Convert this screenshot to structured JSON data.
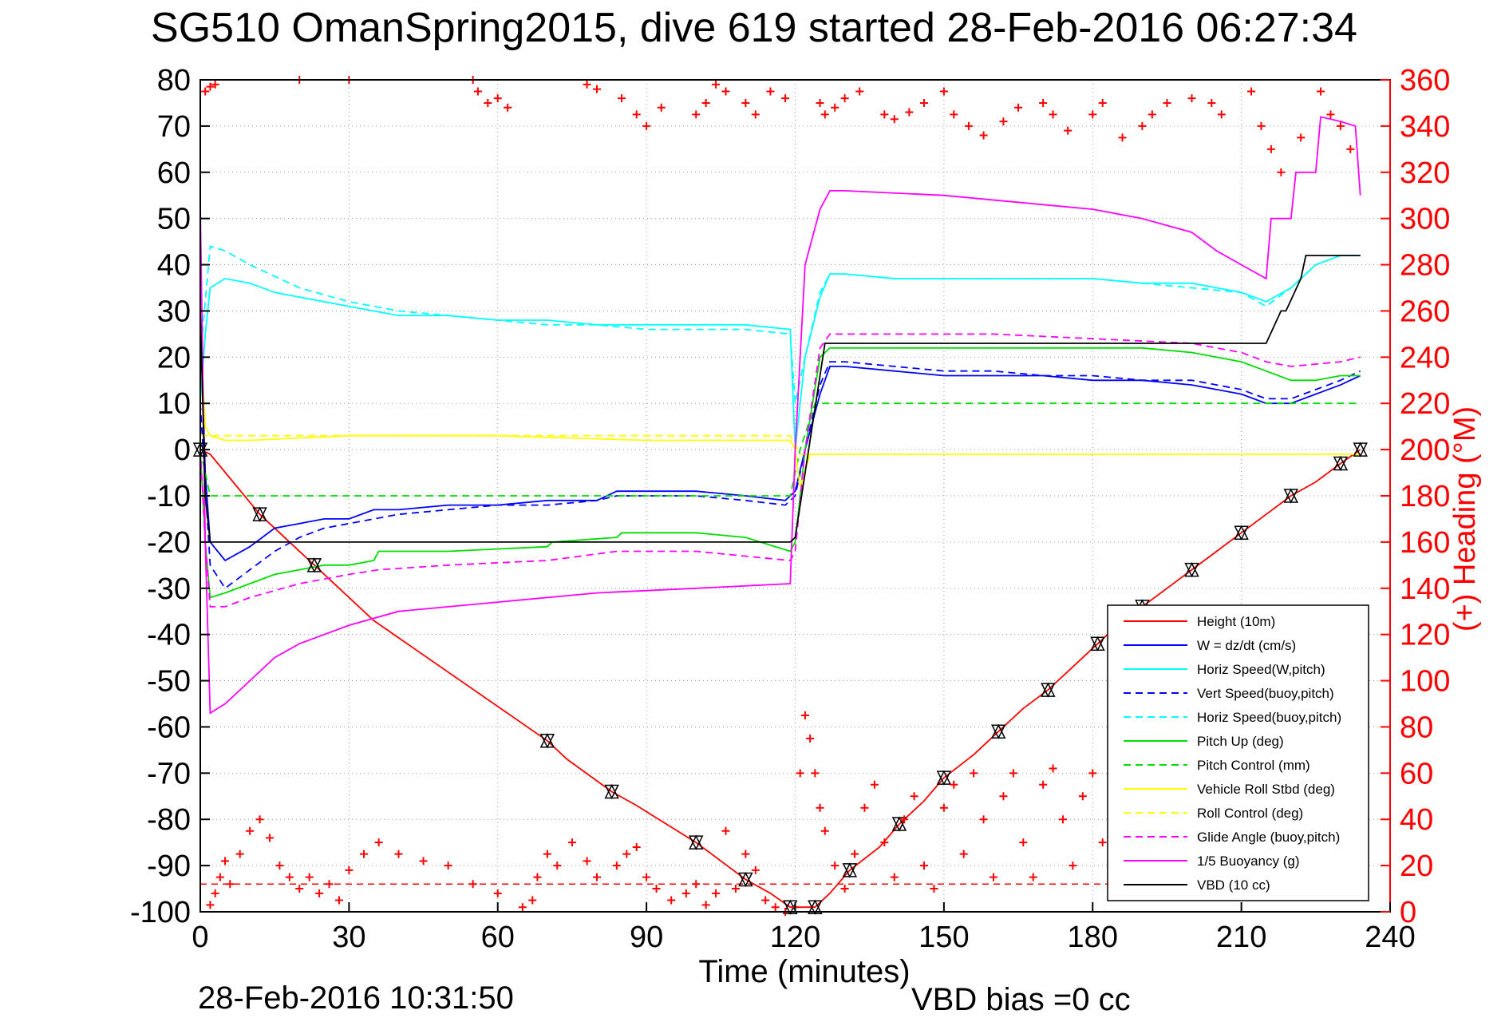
{
  "colors": {
    "height": "#ff0000",
    "w": "#0000ff",
    "horiz": "#00ffff",
    "pitch": "#00dd00",
    "roll": "#ffff00",
    "glide": "#ff00ff",
    "buoyancy": "#ff00ff",
    "vbd": "#000000",
    "heading": "#ff0000"
  },
  "footer": {
    "timestamp": "28-Feb-2016 10:31:50",
    "vbd_bias": "VBD bias =0 cc"
  },
  "chart_data": {
    "type": "line",
    "title": "SG510 OmanSpring2015, dive 619 started 28-Feb-2016 06:27:34",
    "xlabel": "Time (minutes)",
    "ylabel": "",
    "y2label": "(+) Heading (°M)",
    "xlim": [
      0,
      240
    ],
    "ylim": [
      -100,
      80
    ],
    "y2lim": [
      0,
      360
    ],
    "xticks": [
      0,
      30,
      60,
      90,
      120,
      150,
      180,
      210,
      240
    ],
    "yticks": [
      80,
      70,
      60,
      50,
      40,
      30,
      20,
      10,
      0,
      -10,
      -20,
      -30,
      -40,
      -50,
      -60,
      -70,
      -80,
      -90,
      -100
    ],
    "y2ticks": [
      360,
      340,
      320,
      300,
      280,
      260,
      240,
      220,
      200,
      180,
      160,
      140,
      120,
      100,
      80,
      60,
      40,
      20,
      0
    ],
    "grid": true,
    "legend_position": "bottom-right",
    "series": [
      {
        "name": "Height (10m)",
        "style": "solid",
        "color_key": "height",
        "x": [
          0,
          2,
          12,
          16,
          23,
          35,
          70,
          74,
          83,
          88,
          100,
          105,
          110,
          115,
          119,
          121,
          124,
          127,
          131,
          137,
          141,
          146,
          150,
          156,
          161,
          166,
          171,
          176,
          181,
          185,
          190,
          195,
          200,
          205,
          210,
          215,
          220,
          225,
          230,
          234
        ],
        "y": [
          0,
          -1,
          -14,
          -18,
          -25,
          -37,
          -63,
          -67,
          -74,
          -77,
          -85,
          -89,
          -93,
          -96,
          -99,
          -99,
          -99,
          -96,
          -91,
          -86,
          -81,
          -76,
          -71,
          -66,
          -61,
          -56,
          -52,
          -47,
          -42,
          -38,
          -34,
          -30,
          -26,
          -22,
          -18,
          -14,
          -10,
          -7,
          -3,
          0
        ]
      },
      {
        "name": "W = dz/dt (cm/s)",
        "style": "solid",
        "color_key": "w",
        "x": [
          0,
          1,
          2,
          5,
          10,
          15,
          20,
          25,
          30,
          35,
          40,
          50,
          60,
          70,
          80,
          84,
          90,
          100,
          110,
          118,
          120,
          122,
          125,
          127,
          130,
          140,
          150,
          160,
          170,
          180,
          190,
          200,
          210,
          215,
          220,
          225,
          230,
          234
        ],
        "y": [
          30,
          -5,
          -20,
          -24,
          -21,
          -17,
          -16,
          -15,
          -15,
          -13,
          -13,
          -12,
          -12,
          -11,
          -11,
          -9,
          -9,
          -9,
          -10,
          -11,
          -9,
          0,
          12,
          18,
          18,
          17,
          16,
          16,
          16,
          15,
          15,
          14,
          12,
          10,
          10,
          12,
          14,
          16
        ]
      },
      {
        "name": "Horiz Speed(W,pitch)",
        "style": "solid",
        "color_key": "horiz",
        "x": [
          0,
          1,
          2,
          5,
          10,
          15,
          20,
          30,
          40,
          50,
          60,
          70,
          80,
          90,
          100,
          110,
          119,
          120,
          122,
          125,
          127,
          130,
          140,
          150,
          160,
          170,
          180,
          190,
          200,
          210,
          215,
          220,
          225,
          230,
          234
        ],
        "y": [
          10,
          25,
          35,
          37,
          36,
          34,
          33,
          31,
          29,
          29,
          28,
          28,
          27,
          27,
          27,
          27,
          26,
          0,
          20,
          33,
          38,
          38,
          37,
          37,
          37,
          37,
          37,
          36,
          36,
          34,
          32,
          35,
          40,
          42,
          42
        ]
      },
      {
        "name": "Vert Speed(buoy,pitch)",
        "style": "dashed",
        "color_key": "w",
        "x": [
          0,
          2,
          5,
          10,
          15,
          20,
          25,
          30,
          40,
          50,
          60,
          70,
          80,
          84,
          90,
          100,
          110,
          118,
          120,
          122,
          125,
          127,
          130,
          140,
          150,
          160,
          170,
          180,
          190,
          200,
          210,
          215,
          220,
          225,
          230,
          234
        ],
        "y": [
          10,
          -25,
          -30,
          -26,
          -22,
          -19,
          -17,
          -16,
          -14,
          -13,
          -12,
          -12,
          -11,
          -10,
          -10,
          -10,
          -11,
          -12,
          -10,
          0,
          14,
          19,
          19,
          18,
          17,
          17,
          16,
          16,
          15,
          15,
          13,
          11,
          11,
          13,
          15,
          17
        ]
      },
      {
        "name": "Horiz Speed(buoy,pitch)",
        "style": "dashed",
        "color_key": "horiz",
        "x": [
          0,
          2,
          5,
          10,
          20,
          30,
          40,
          50,
          60,
          70,
          80,
          90,
          100,
          110,
          119,
          120,
          122,
          125,
          127,
          130,
          140,
          150,
          160,
          170,
          180,
          190,
          200,
          210,
          215,
          220,
          225,
          230,
          234
        ],
        "y": [
          20,
          44,
          43,
          40,
          35,
          32,
          30,
          29,
          28,
          27,
          27,
          26,
          26,
          26,
          25,
          10,
          20,
          34,
          38,
          38,
          37,
          37,
          37,
          37,
          37,
          36,
          35,
          34,
          31,
          35,
          40,
          42,
          42
        ]
      },
      {
        "name": "Pitch Up (deg)",
        "style": "solid",
        "color_key": "pitch",
        "x": [
          0,
          1,
          2,
          5,
          10,
          15,
          20,
          25,
          30,
          35,
          36,
          50,
          70,
          71,
          84,
          85,
          100,
          110,
          119,
          120,
          122,
          125,
          127,
          130,
          140,
          150,
          160,
          170,
          180,
          190,
          200,
          210,
          215,
          220,
          225,
          230,
          234
        ],
        "y": [
          0,
          -20,
          -32,
          -31,
          -29,
          -27,
          -26,
          -25,
          -25,
          -24,
          -22,
          -22,
          -21,
          -20,
          -19,
          -18,
          -18,
          -19,
          -22,
          -20,
          0,
          20,
          22,
          22,
          22,
          22,
          22,
          22,
          22,
          22,
          21,
          19,
          17,
          15,
          15,
          16,
          16
        ]
      },
      {
        "name": "Pitch Control (mm)",
        "style": "dashed",
        "color_key": "pitch",
        "x": [
          0,
          2,
          3,
          119,
          121,
          124,
          126,
          127,
          234
        ],
        "y": [
          0,
          -10,
          -10,
          -10,
          0,
          10,
          10,
          10,
          10
        ]
      },
      {
        "name": "Vehicle Roll Stbd (deg)",
        "style": "solid",
        "color_key": "roll",
        "x": [
          0,
          1,
          2,
          5,
          10,
          30,
          60,
          90,
          119,
          120,
          121,
          123,
          126,
          127,
          140,
          160,
          180,
          200,
          220,
          234
        ],
        "y": [
          25,
          5,
          3,
          2,
          2,
          3,
          3,
          2,
          2,
          0,
          -8,
          -1,
          -1,
          -1,
          -1,
          -1,
          -1,
          -1,
          -1,
          -1
        ]
      },
      {
        "name": "Roll Control (deg)",
        "style": "dashed",
        "color_key": "roll",
        "x": [
          0,
          2,
          119,
          121,
          234
        ],
        "y": [
          3,
          3,
          3,
          -1,
          -1
        ]
      },
      {
        "name": "Glide Angle (buoy,pitch)",
        "style": "dashed",
        "color_key": "glide",
        "x": [
          0,
          1,
          2,
          5,
          10,
          20,
          30,
          36,
          50,
          70,
          84,
          100,
          119,
          120,
          122,
          125,
          127,
          140,
          160,
          180,
          200,
          210,
          215,
          220,
          230,
          234
        ],
        "y": [
          0,
          -20,
          -34,
          -34,
          -32,
          -29,
          -27,
          -26,
          -25,
          -24,
          -22,
          -22,
          -24,
          -22,
          0,
          22,
          25,
          25,
          25,
          24,
          23,
          21,
          19,
          18,
          19,
          20
        ]
      },
      {
        "name": "1/5 Buoyancy (g)",
        "style": "solid",
        "color_key": "buoyancy",
        "x": [
          0,
          1,
          2,
          5,
          10,
          15,
          20,
          30,
          40,
          60,
          80,
          100,
          119,
          120,
          122,
          125,
          127,
          130,
          150,
          170,
          180,
          190,
          200,
          205,
          210,
          215,
          216,
          220,
          221,
          225,
          226,
          230,
          233,
          234
        ],
        "y": [
          53,
          -20,
          -57,
          -55,
          -50,
          -45,
          -42,
          -38,
          -35,
          -33,
          -31,
          -30,
          -29,
          0,
          40,
          52,
          56,
          56,
          55,
          53,
          52,
          50,
          47,
          43,
          40,
          37,
          50,
          50,
          60,
          60,
          72,
          71,
          70,
          55
        ]
      },
      {
        "name": "VBD (10 cc)",
        "style": "solid",
        "color_key": "vbd",
        "x": [
          0,
          1,
          2,
          119,
          120,
          126,
          127,
          214,
          215,
          218,
          219,
          222,
          223,
          234
        ],
        "y": [
          30,
          -10,
          -20,
          -20,
          -19,
          23,
          23,
          23,
          23,
          30,
          30,
          37,
          42,
          42
        ]
      }
    ],
    "heading": {
      "name": "(+) Heading (°M)",
      "axis": "y2",
      "marker": "+",
      "x": [
        2,
        3,
        4,
        5,
        6,
        8,
        10,
        12,
        14,
        16,
        18,
        20,
        22,
        24,
        26,
        28,
        30,
        33,
        36,
        40,
        45,
        50,
        55,
        60,
        65,
        67,
        68,
        70,
        72,
        75,
        78,
        80,
        84,
        86,
        88,
        90,
        92,
        95,
        98,
        100,
        102,
        104,
        106,
        108,
        110,
        112,
        114,
        116,
        118,
        120,
        121,
        122,
        123,
        124,
        125,
        126,
        128,
        130,
        132,
        134,
        136,
        138,
        140,
        142,
        144,
        146,
        148,
        150,
        152,
        154,
        156,
        158,
        160,
        162,
        164,
        166,
        168,
        170,
        172,
        174,
        176,
        178,
        180,
        182,
        184,
        186,
        188,
        190,
        192,
        194,
        196,
        198,
        200,
        202,
        204,
        206,
        208,
        210,
        212,
        214,
        216,
        218,
        220,
        222,
        224,
        226,
        228,
        230,
        232,
        233
      ],
      "y": [
        3,
        8,
        15,
        22,
        12,
        25,
        35,
        40,
        32,
        20,
        15,
        10,
        15,
        8,
        12,
        5,
        18,
        25,
        30,
        25,
        22,
        20,
        12,
        8,
        2,
        5,
        15,
        25,
        20,
        30,
        22,
        15,
        20,
        25,
        28,
        15,
        10,
        5,
        8,
        12,
        3,
        8,
        35,
        10,
        25,
        18,
        5,
        2,
        0,
        2,
        60,
        85,
        75,
        60,
        45,
        35,
        20,
        10,
        25,
        45,
        55,
        30,
        15,
        40,
        50,
        20,
        10,
        45,
        55,
        25,
        60,
        40,
        15,
        50,
        60,
        30,
        15,
        55,
        62,
        40,
        20,
        50,
        60,
        30,
        10,
        45,
        60,
        25,
        10,
        50,
        62,
        35,
        15,
        55,
        60,
        30,
        10,
        45,
        58,
        25,
        40,
        55,
        60,
        45,
        30,
        20,
        35,
        45,
        30,
        20
      ]
    },
    "heading_top": {
      "axis": "y2",
      "marker": "+",
      "x": [
        1,
        2,
        3,
        20,
        30,
        55,
        56,
        58,
        60,
        62,
        78,
        80,
        85,
        88,
        90,
        93,
        100,
        102,
        104,
        106,
        110,
        112,
        115,
        118,
        125,
        126,
        128,
        130,
        133,
        138,
        140,
        143,
        146,
        150,
        152,
        155,
        158,
        162,
        165,
        170,
        172,
        175,
        180,
        182,
        186,
        190,
        192,
        195,
        200,
        204,
        206,
        212,
        214,
        216,
        218,
        222,
        226,
        228,
        230,
        232
      ],
      "y": [
        355,
        357,
        358,
        360,
        360,
        360,
        355,
        350,
        352,
        348,
        358,
        356,
        352,
        345,
        340,
        348,
        345,
        350,
        358,
        355,
        350,
        345,
        355,
        352,
        350,
        345,
        348,
        352,
        355,
        345,
        343,
        346,
        350,
        355,
        345,
        340,
        336,
        342,
        348,
        350,
        345,
        338,
        345,
        350,
        335,
        340,
        345,
        350,
        352,
        350,
        345,
        355,
        340,
        330,
        320,
        335,
        355,
        345,
        340,
        330
      ]
    }
  }
}
